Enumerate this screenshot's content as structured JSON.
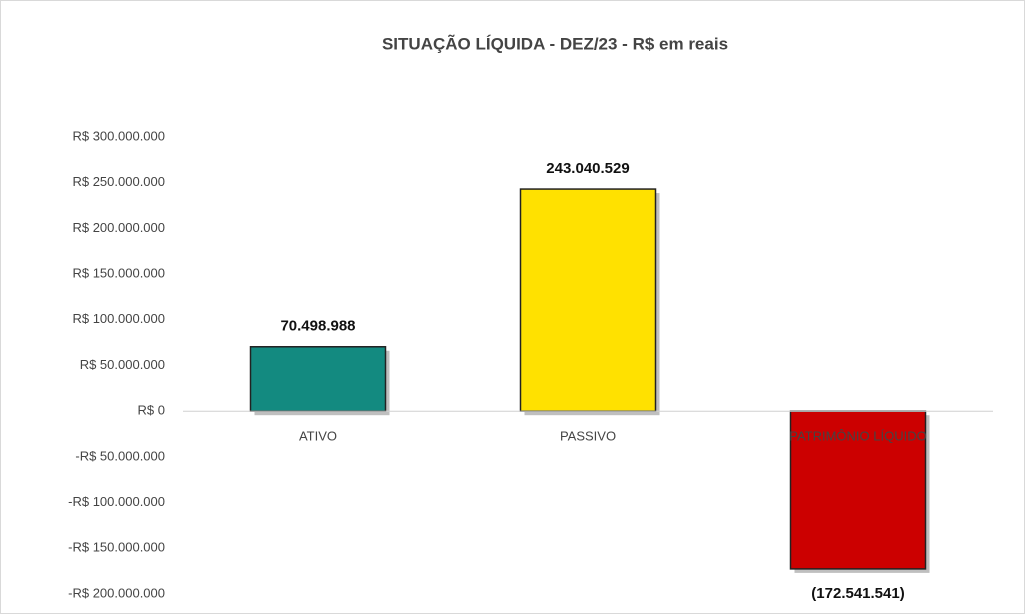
{
  "chart_data": {
    "type": "bar",
    "title": "SITUAÇÃO LÍQUIDA -  DEZ/23 - R$ em reais",
    "categories": [
      "ATIVO",
      "PASSIVO",
      "PATRIMÔNIO LÍQUIDO"
    ],
    "values": [
      70498988,
      243040529,
      -172541541
    ],
    "value_labels": [
      "70.498.988",
      "243.040.529",
      "(172.541.541)"
    ],
    "colors": [
      "#138a80",
      "#ffe100",
      "#cc0000"
    ],
    "ylim": [
      -200000000,
      300000000
    ],
    "yticks": [
      {
        "value": -200000000,
        "label": "-R$ 200.000.000"
      },
      {
        "value": -150000000,
        "label": "-R$ 150.000.000"
      },
      {
        "value": -100000000,
        "label": "-R$ 100.000.000"
      },
      {
        "value": -50000000,
        "label": "-R$ 50.000.000"
      },
      {
        "value": 0,
        "label": "R$ 0"
      },
      {
        "value": 50000000,
        "label": "R$ 50.000.000"
      },
      {
        "value": 100000000,
        "label": "R$ 100.000.000"
      },
      {
        "value": 150000000,
        "label": "R$ 150.000.000"
      },
      {
        "value": 200000000,
        "label": "R$ 200.000.000"
      },
      {
        "value": 250000000,
        "label": "R$ 250.000.000"
      },
      {
        "value": 300000000,
        "label": "R$ 300.000.000"
      }
    ]
  }
}
